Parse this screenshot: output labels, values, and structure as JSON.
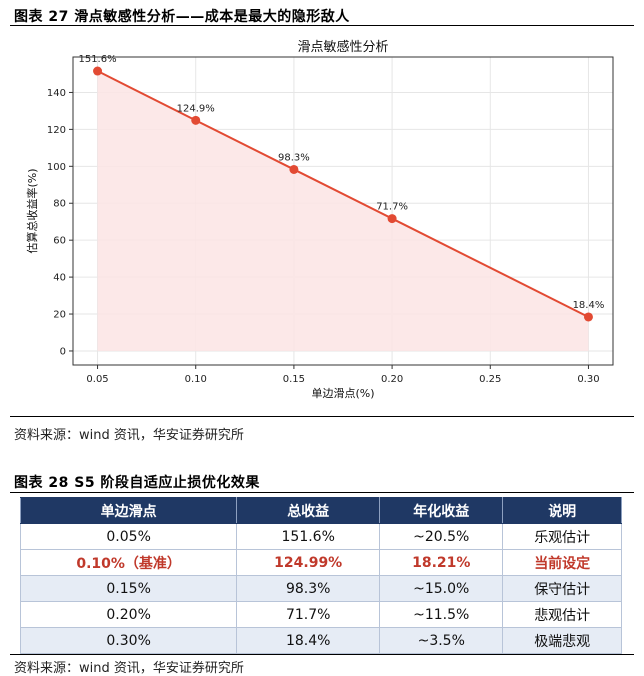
{
  "figure1": {
    "title": "图表 27 滑点敏感性分析——成本是最大的隐形敌人",
    "source": "资料来源：wind 资讯，华安证券研究所"
  },
  "chart_data": {
    "type": "line",
    "title": "滑点敏感性分析",
    "xlabel": "单边滑点(%)",
    "ylabel": "估算总收益率(%)",
    "x": [
      0.05,
      0.1,
      0.15,
      0.2,
      0.3
    ],
    "y": [
      151.6,
      124.9,
      98.3,
      71.7,
      18.4
    ],
    "point_labels": [
      "151.6%",
      "124.9%",
      "98.3%",
      "71.7%",
      "18.4%"
    ],
    "xticks": [
      "0.05",
      "0.10",
      "0.15",
      "0.20",
      "0.25",
      "0.30"
    ],
    "xtick_values": [
      0.05,
      0.1,
      0.15,
      0.2,
      0.25,
      0.3
    ],
    "yticks": [
      "0",
      "20",
      "40",
      "60",
      "80",
      "100",
      "120",
      "140"
    ],
    "ytick_values": [
      0,
      20,
      40,
      60,
      80,
      100,
      120,
      140
    ],
    "xlim": [
      0.0375,
      0.3125
    ],
    "ylim": [
      -7.6,
      159.2
    ],
    "grid": true,
    "fill_under": true,
    "colors": {
      "line": "#e24a33",
      "fill": "#fbe4e4",
      "grid": "#e6e6e6"
    }
  },
  "figure2": {
    "title": "图表 28 S5 阶段自适应止损优化效果",
    "source": "资料来源：wind 资讯，华安证券研究所",
    "headers": [
      "单边滑点",
      "总收益",
      "年化收益",
      "说明"
    ],
    "rows": [
      [
        "0.05%",
        "151.6%",
        "~20.5%",
        "乐观估计"
      ],
      [
        "0.10%（基准）",
        "124.99%",
        "18.21%",
        "当前设定"
      ],
      [
        "0.15%",
        "98.3%",
        "~15.0%",
        "保守估计"
      ],
      [
        "0.20%",
        "71.7%",
        "~11.5%",
        "悲观估计"
      ],
      [
        "0.30%",
        "18.4%",
        "~3.5%",
        "极端悲观"
      ]
    ],
    "highlight_row": 1,
    "colors": {
      "header_bg": "#1f3864",
      "highlight_text": "#c0392b",
      "band": "#e6ecf5"
    }
  }
}
